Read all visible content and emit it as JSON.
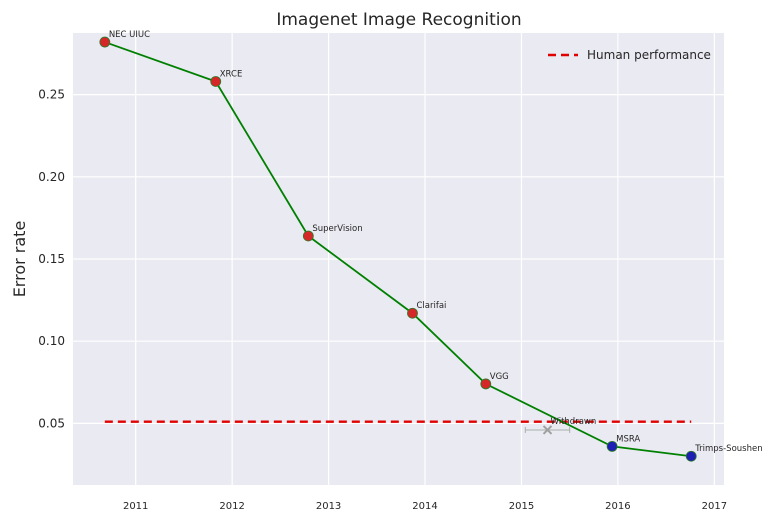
{
  "chart_data": {
    "type": "line",
    "title": "Imagenet Image Recognition",
    "xlabel": "",
    "ylabel": "Error rate",
    "xlim": [
      2010.35,
      2017.1
    ],
    "ylim": [
      0.0125,
      0.2875
    ],
    "x_ticks": [
      "2011",
      "2012",
      "2013",
      "2014",
      "2015",
      "2016",
      "2017"
    ],
    "y_ticks": [
      "0.05",
      "0.10",
      "0.15",
      "0.20",
      "0.25"
    ],
    "grid": true,
    "legend_position": "top-right",
    "series": [
      {
        "type": "line",
        "color": "#008000",
        "points": [
          {
            "x": 2010.68,
            "y": 0.282,
            "label": "NEC UIUC",
            "marker_color": "#d62728"
          },
          {
            "x": 2011.83,
            "y": 0.258,
            "label": "XRCE",
            "marker_color": "#d62728"
          },
          {
            "x": 2012.79,
            "y": 0.164,
            "label": "SuperVision",
            "marker_color": "#d62728"
          },
          {
            "x": 2013.87,
            "y": 0.117,
            "label": "Clarifai",
            "marker_color": "#d62728"
          },
          {
            "x": 2014.63,
            "y": 0.074,
            "label": "VGG",
            "marker_color": "#d62728"
          },
          {
            "x": 2015.94,
            "y": 0.036,
            "label": "MSRA",
            "marker_color": "#1f1fb4"
          },
          {
            "x": 2016.76,
            "y": 0.03,
            "label": "Trimps-Soushen",
            "marker_color": "#1f1fb4"
          }
        ]
      },
      {
        "type": "point",
        "marker": "x",
        "color": "#a0a0a0",
        "points": [
          {
            "x": 2015.27,
            "y": 0.046,
            "label": "Withdrawn",
            "xerr": 0.23
          }
        ]
      },
      {
        "name": "Human performance",
        "type": "hline",
        "color": "#e00000",
        "y": 0.051,
        "x_range": [
          2010.68,
          2016.76
        ]
      }
    ]
  }
}
